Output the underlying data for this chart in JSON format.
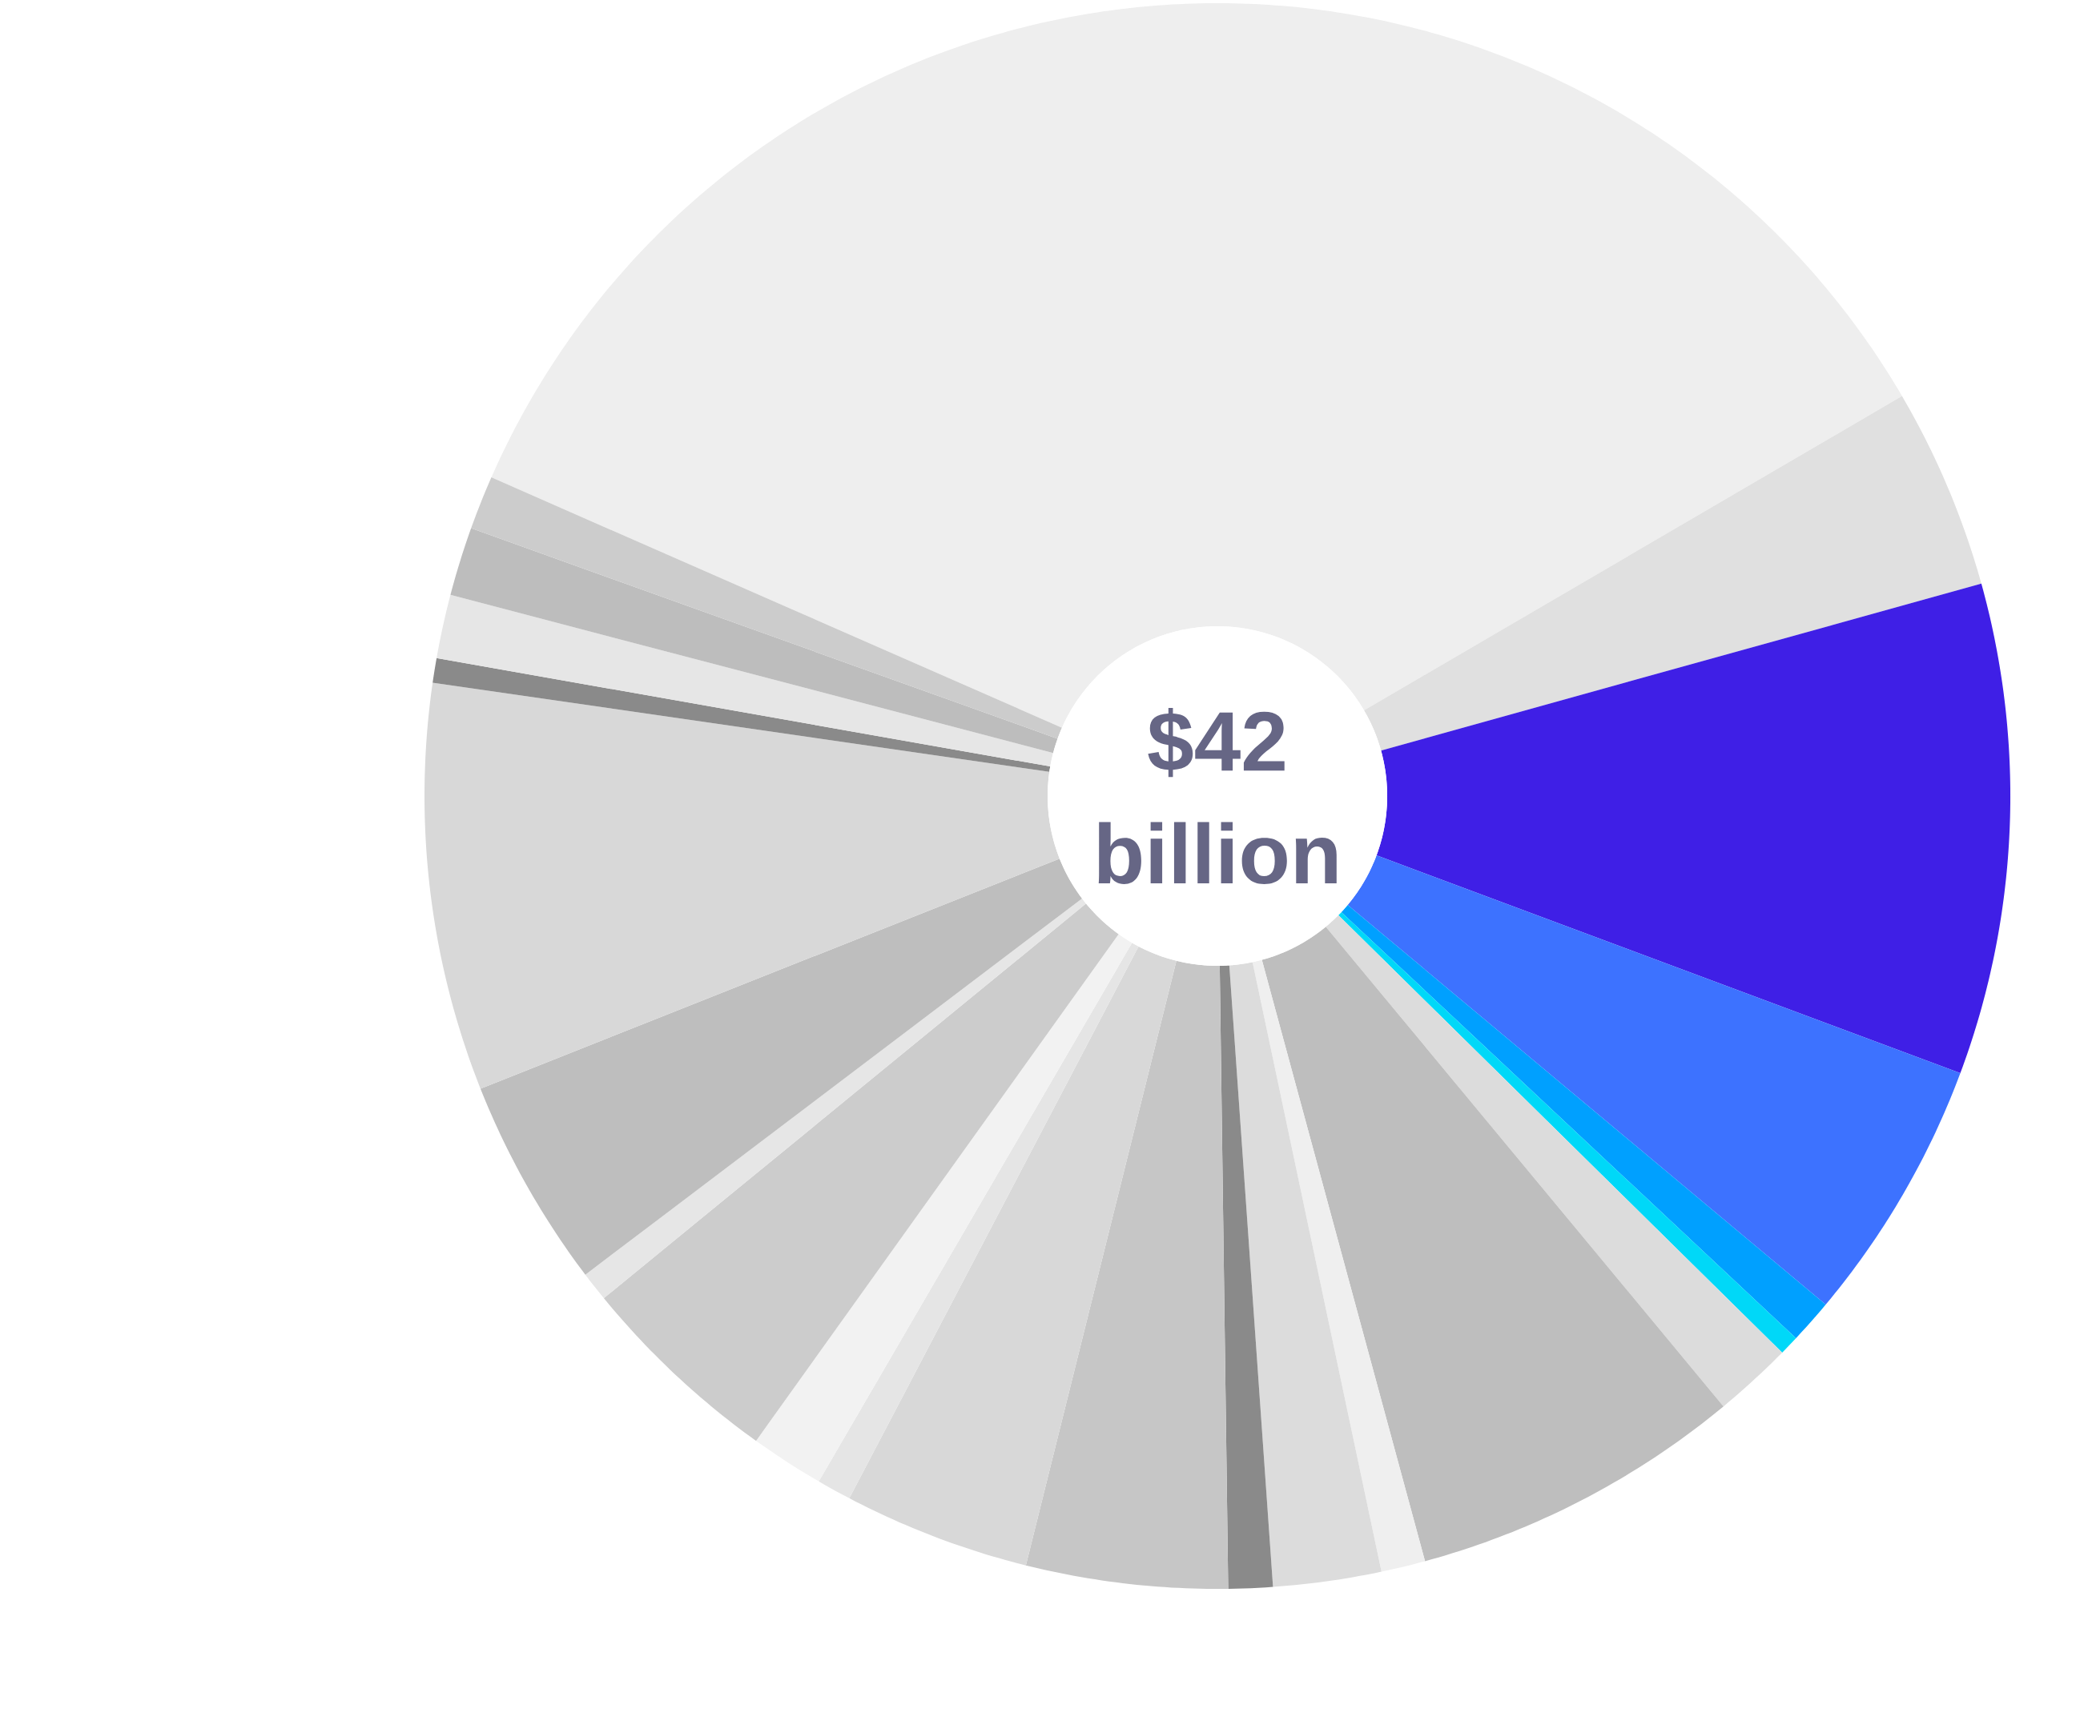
{
  "chart_data": {
    "type": "donut",
    "title": "$42 billion",
    "categories": [
      null,
      null,
      null,
      null,
      null,
      null,
      null,
      null,
      null,
      null,
      null,
      null,
      null,
      null,
      null,
      null,
      null,
      null,
      null,
      null,
      null,
      null,
      null
    ],
    "values": [
      35.0,
      4.1,
      10.0,
      5.4,
      0.9,
      0.4,
      1.6,
      6.8,
      0.9,
      2.2,
      0.9,
      4.1,
      3.8,
      0.7,
      1.5,
      4.2,
      0.6,
      4.3,
      8.3,
      0.5,
      1.3,
      1.4,
      1.1
    ],
    "colors": [
      "#eeeeee",
      "#e0e0e0",
      "#3f1fe6",
      "#3d72ff",
      "#00a0ff",
      "#00d8f8",
      "#dcdcdc",
      "#bebebe",
      "#efefef",
      "#dcdcdc",
      "#8a8a8a",
      "#c6c6c6",
      "#d8d8d8",
      "#e5e5e5",
      "#f2f2f2",
      "#cccccc",
      "#e6e6e6",
      "#bebebe",
      "#d8d8d8",
      "#8a8a8a",
      "#e6e6e6",
      "#bdbdbd",
      "#cccccc"
    ]
  }
}
